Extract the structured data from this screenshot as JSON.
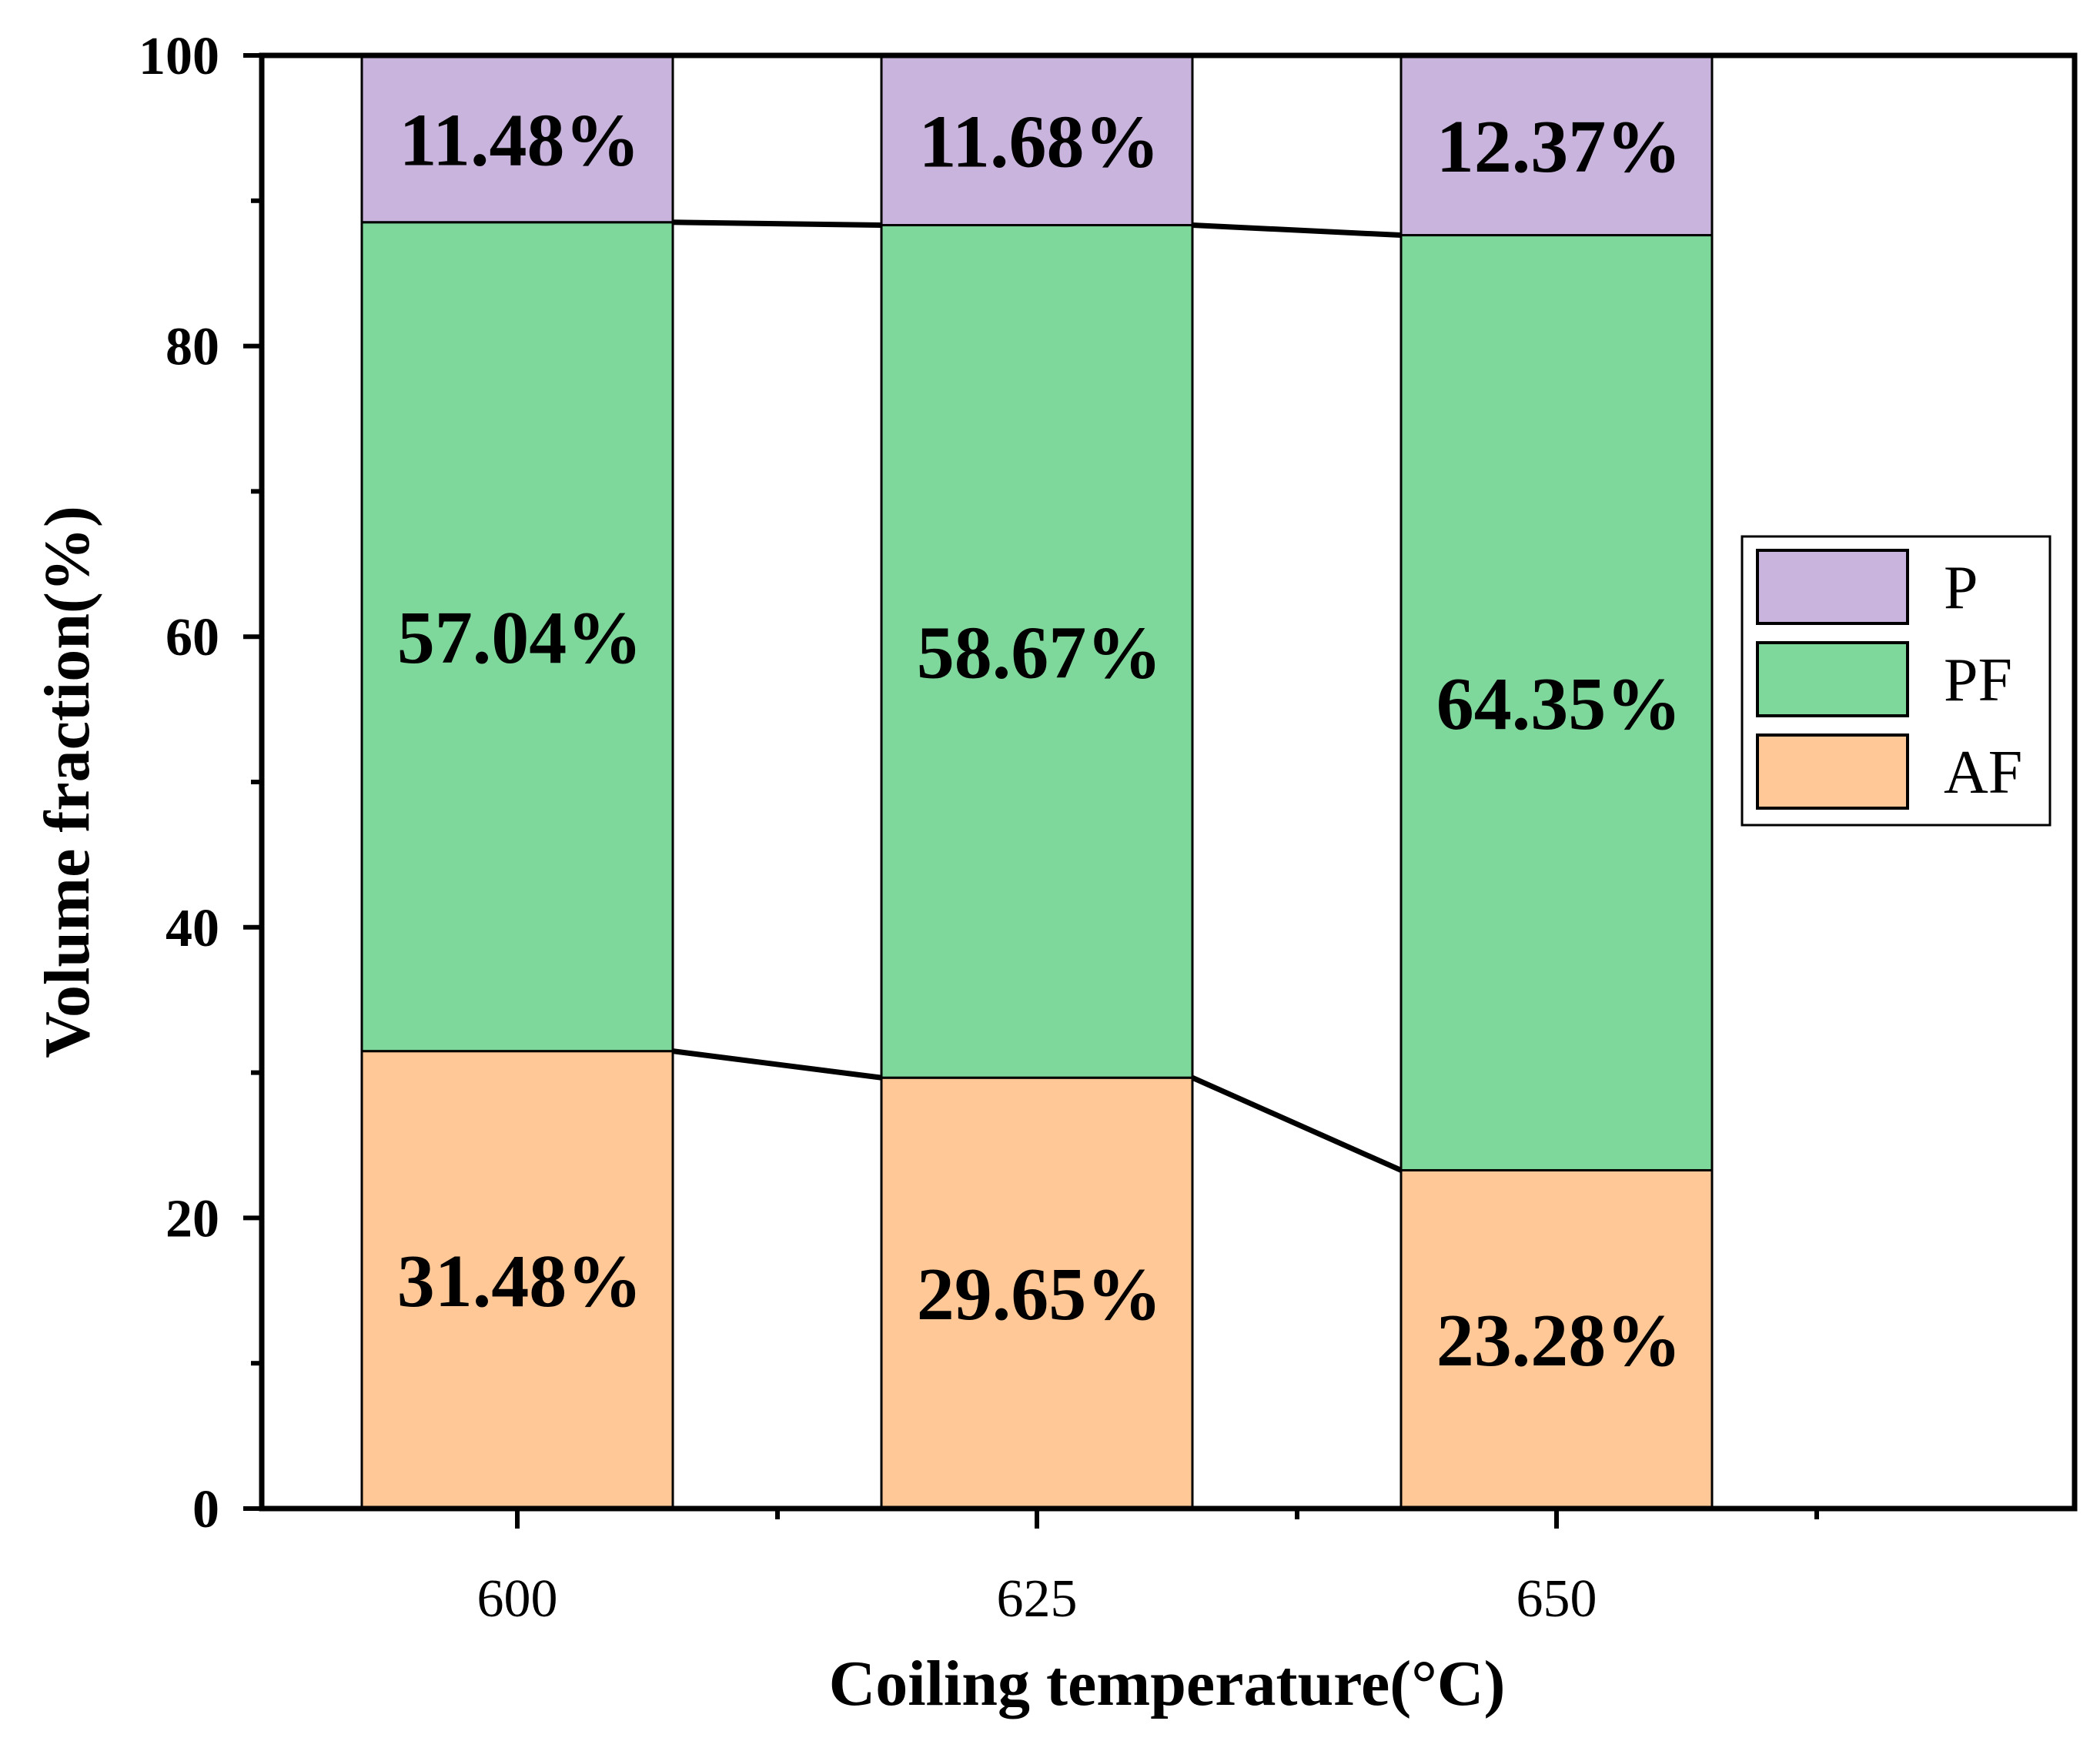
{
  "chart_data": {
    "type": "bar",
    "stacked": true,
    "categories": [
      "600",
      "625",
      "650"
    ],
    "series": [
      {
        "name": "AF",
        "values": [
          31.48,
          29.65,
          23.28
        ],
        "labels": [
          "31.48%",
          "29.65%",
          "23.28%"
        ],
        "color": "#FFC896"
      },
      {
        "name": "PF",
        "values": [
          57.04,
          58.67,
          64.35
        ],
        "labels": [
          "57.04%",
          "58.67%",
          "64.35%"
        ],
        "color": "#7FD89B"
      },
      {
        "name": "P",
        "values": [
          11.48,
          11.68,
          12.37
        ],
        "labels": [
          "11.48%",
          "11.68%",
          "12.37%"
        ],
        "color": "#C8B4DC"
      }
    ],
    "xlabel": "Coiling temperature(°C)",
    "ylabel": "Volume fraction(%)",
    "ylim": [
      0,
      100
    ],
    "yticks": [
      "0",
      "20",
      "40",
      "60",
      "80",
      "100"
    ],
    "legend": {
      "placement": "right",
      "order": [
        "P",
        "PF",
        "AF"
      ]
    },
    "connector_lines": true,
    "grid": false
  }
}
